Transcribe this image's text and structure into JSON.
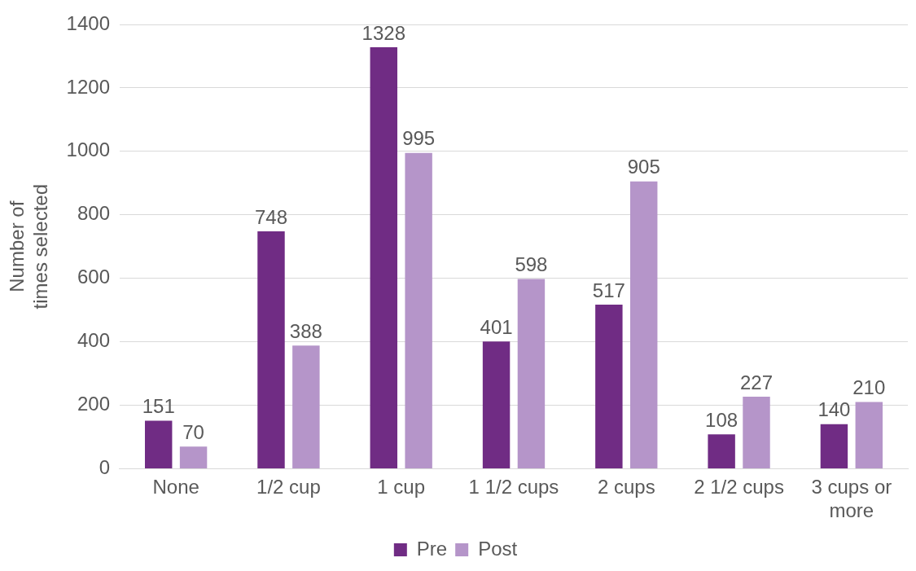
{
  "chart_data": {
    "type": "bar",
    "ylabel": "Number of times selected",
    "categories": [
      "None",
      "1/2 cup",
      "1 cup",
      "1 1/2 cups",
      "2 cups",
      "2 1/2 cups",
      "3 cups or more"
    ],
    "series": [
      {
        "name": "Pre",
        "color": "#702c84",
        "values": [
          151,
          748,
          1328,
          401,
          517,
          108,
          140
        ]
      },
      {
        "name": "Post",
        "color": "#b595c9",
        "values": [
          70,
          388,
          995,
          598,
          905,
          227,
          210
        ]
      }
    ],
    "ylim": [
      0,
      1400
    ],
    "yticks": [
      0,
      200,
      400,
      600,
      800,
      1000,
      1200,
      1400
    ],
    "grid": "y",
    "legend": "bottom",
    "data_labels": true
  }
}
